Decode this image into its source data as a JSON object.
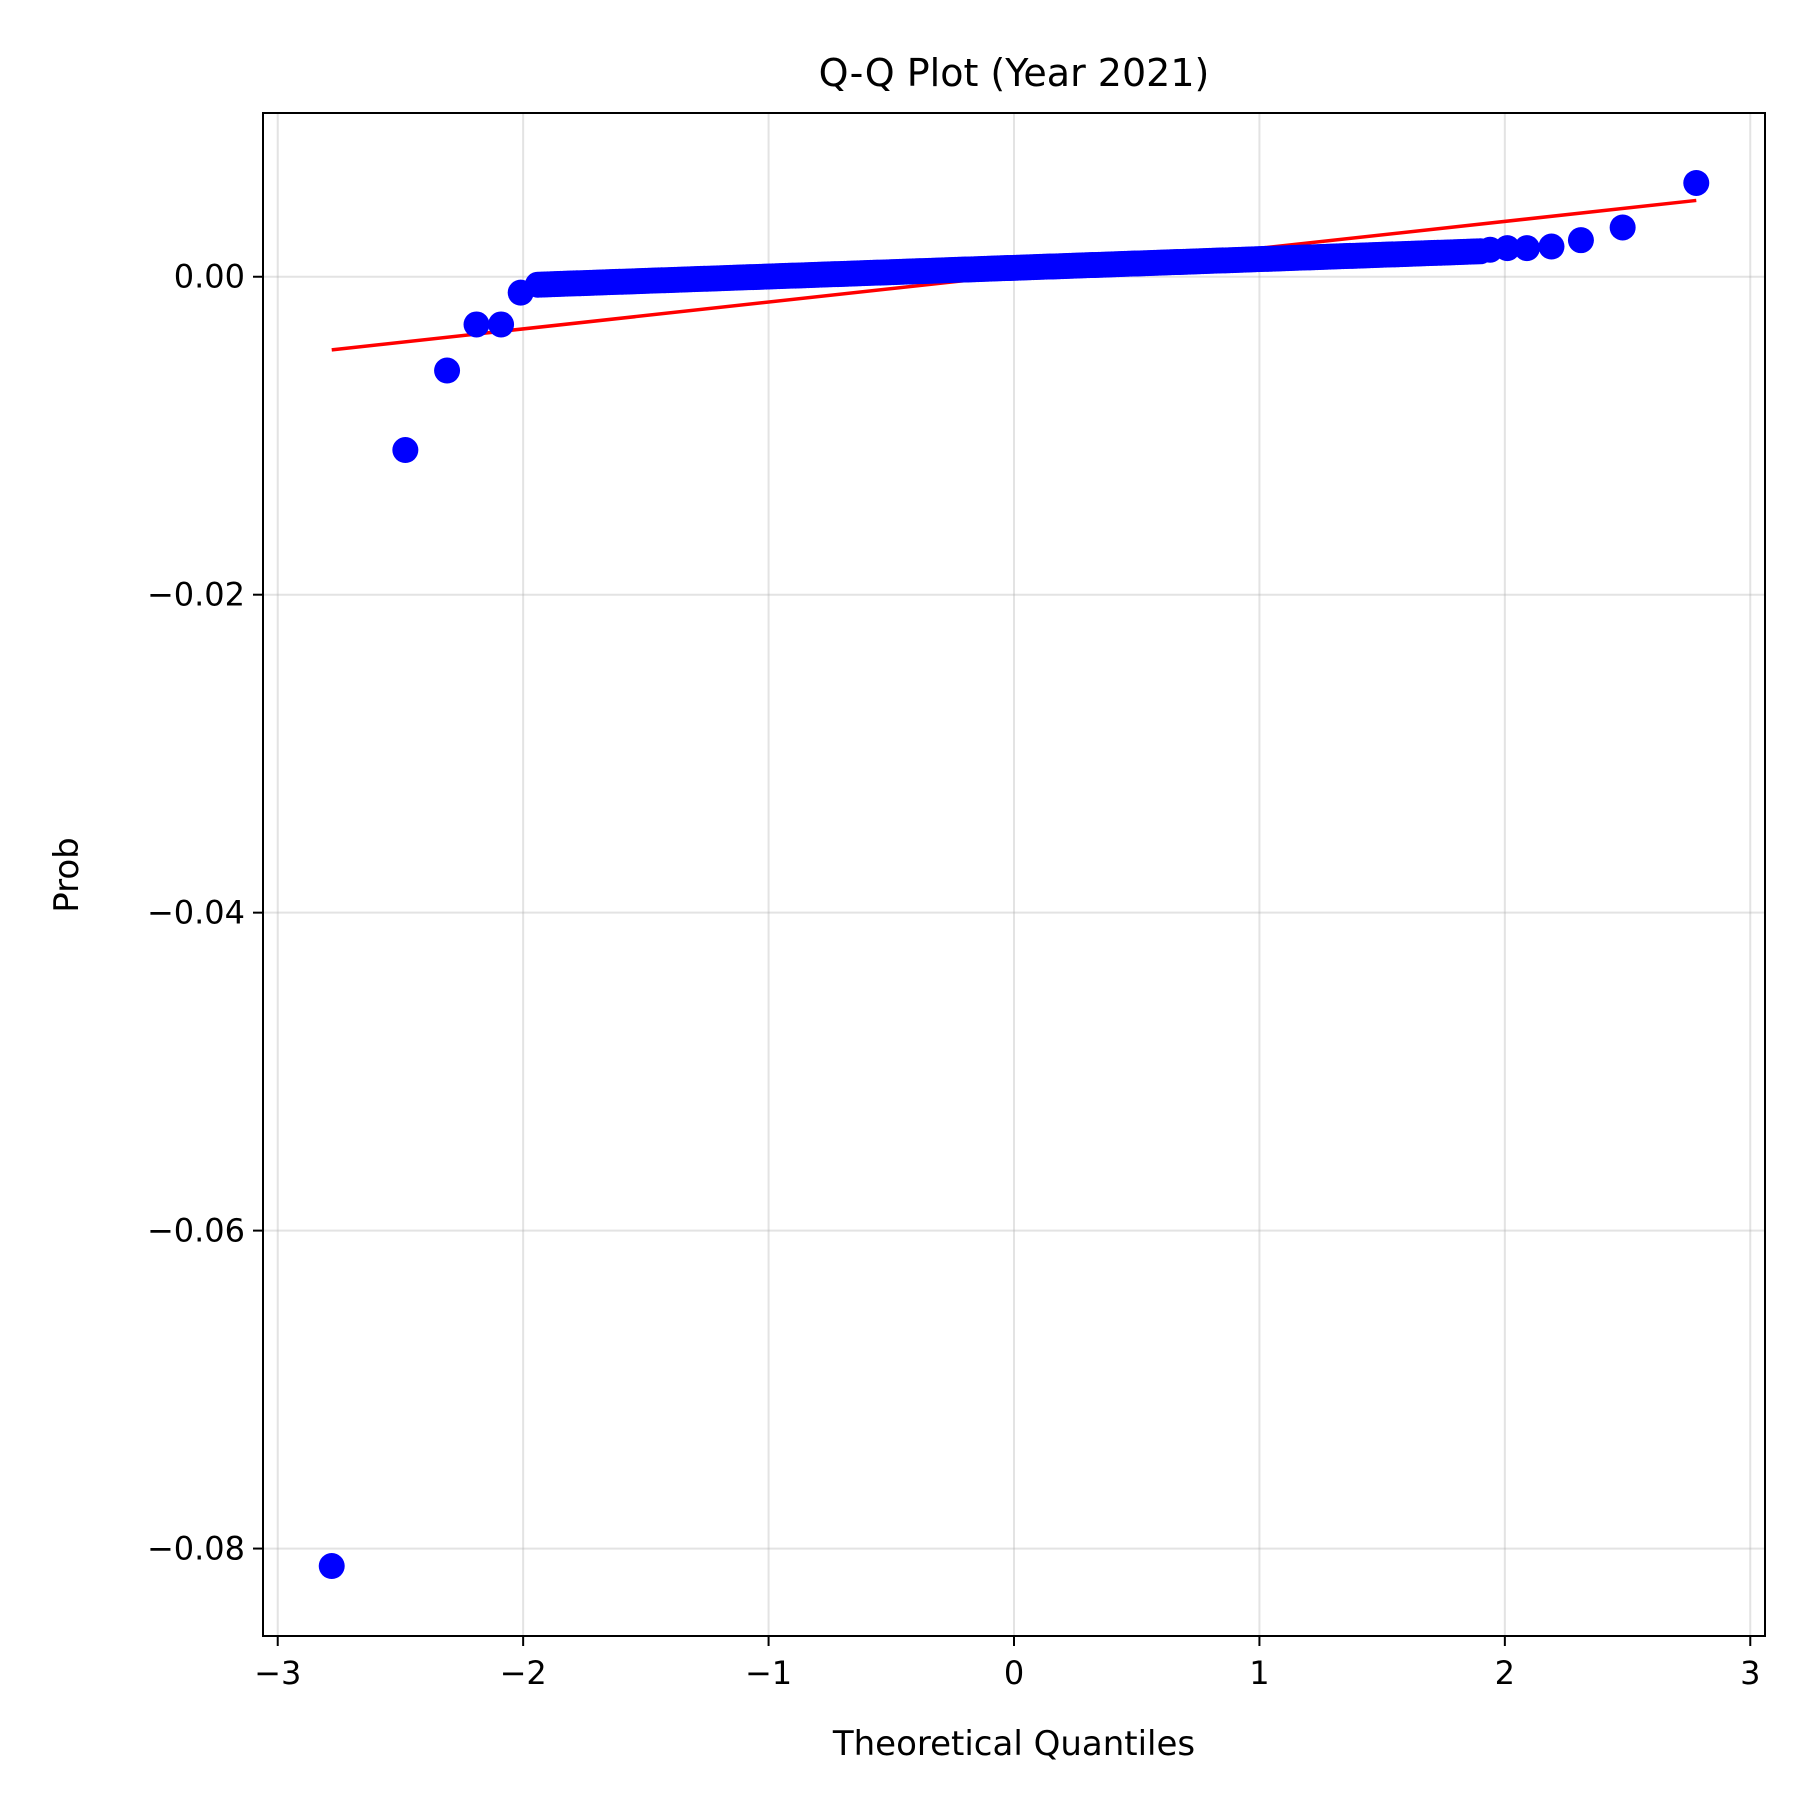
{
  "chart_data": {
    "type": "scatter",
    "title": "Q-Q Plot (Year 2021)",
    "xlabel": "Theoretical Quantiles",
    "ylabel": "Prob",
    "xlim": [
      -3.06,
      3.06
    ],
    "ylim": [
      -0.0855,
      0.0103
    ],
    "xticks": [
      -3,
      -2,
      -1,
      0,
      1,
      2,
      3
    ],
    "xtick_labels": [
      "−3",
      "−2",
      "−1",
      "0",
      "1",
      "2",
      "3"
    ],
    "yticks": [
      0.0,
      -0.02,
      -0.04,
      -0.06,
      -0.08
    ],
    "ytick_labels": [
      "0.00",
      "−0.02",
      "−0.04",
      "−0.06",
      "−0.08"
    ],
    "grid": true,
    "colors": {
      "points": "#0000ff",
      "fit_line": "#ff0000"
    },
    "fit_line": {
      "x": [
        -2.78,
        2.78
      ],
      "y": [
        -0.0046,
        0.0048
      ]
    },
    "outliers": [
      {
        "x": -2.78,
        "y": -0.0811
      },
      {
        "x": -2.48,
        "y": -0.0109
      },
      {
        "x": -2.31,
        "y": -0.0059
      },
      {
        "x": -2.19,
        "y": -0.003
      },
      {
        "x": -2.09,
        "y": -0.003
      },
      {
        "x": -2.01,
        "y": -0.001
      },
      {
        "x": 1.94,
        "y": 0.0017
      },
      {
        "x": 2.01,
        "y": 0.0018
      },
      {
        "x": 2.09,
        "y": 0.0018
      },
      {
        "x": 2.19,
        "y": 0.0019
      },
      {
        "x": 2.31,
        "y": 0.0023
      },
      {
        "x": 2.48,
        "y": 0.0031
      },
      {
        "x": 2.78,
        "y": 0.0059
      }
    ],
    "bulk": {
      "count": 290,
      "x_range": [
        -1.94,
        1.9
      ],
      "y_at_x_start": -0.0005,
      "y_at_x_end": 0.0016
    }
  }
}
